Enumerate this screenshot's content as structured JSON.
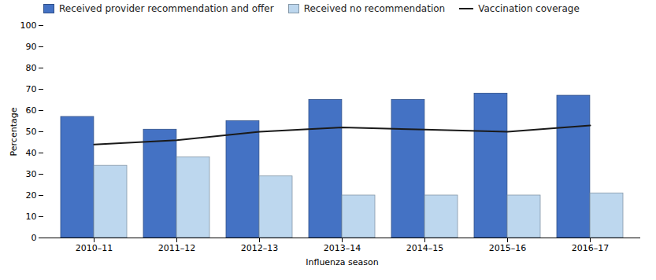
{
  "chart_data": {
    "type": "bar",
    "xlabel": "Influenza season",
    "ylabel": "Percentage",
    "categories": [
      "2010–11",
      "2011–12",
      "2012–13",
      "2013–14",
      "2014–15",
      "2015–16",
      "2016–17"
    ],
    "series": [
      {
        "name": "Received provider recommendation and offer",
        "type": "bar",
        "color": "#4472C4",
        "values": [
          57,
          51,
          55,
          65,
          65,
          68,
          67
        ]
      },
      {
        "name": "Received no recommendation",
        "type": "bar",
        "color": "#BDD7EE",
        "values": [
          34,
          38,
          29,
          20,
          20,
          20,
          21
        ]
      },
      {
        "name": "Vaccination coverage",
        "type": "line",
        "color": "#1a1a1a",
        "values": [
          44,
          46,
          50,
          52,
          51,
          50,
          53
        ]
      }
    ],
    "ylim": [
      0,
      100
    ],
    "yticks": [
      0,
      10,
      20,
      30,
      40,
      50,
      60,
      70,
      80,
      90,
      100
    ],
    "grid": false,
    "legend": "upper left"
  }
}
